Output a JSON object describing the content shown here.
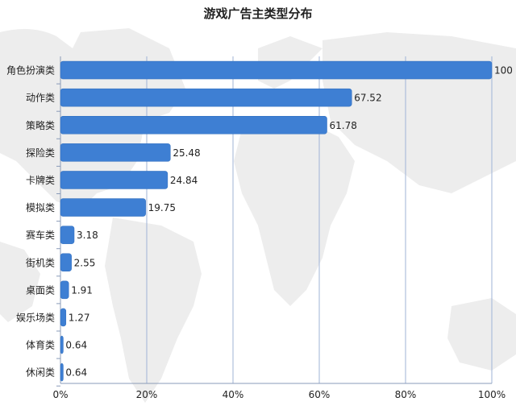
{
  "chart_data": {
    "type": "bar",
    "orientation": "horizontal",
    "title": "游戏广告主类型分布",
    "categories": [
      "角色扮演类",
      "动作类",
      "策略类",
      "探险类",
      "卡牌类",
      "模拟类",
      "赛车类",
      "街机类",
      "桌面类",
      "娱乐场类",
      "体育类",
      "休闲类"
    ],
    "values": [
      100,
      67.52,
      61.78,
      25.48,
      24.84,
      19.75,
      3.18,
      2.55,
      1.91,
      1.27,
      0.64,
      0.64
    ],
    "value_labels": [
      "100",
      "67.52",
      "61.78",
      "25.48",
      "24.84",
      "19.75",
      "3.18",
      "2.55",
      "1.91",
      "1.27",
      "0.64",
      "0.64"
    ],
    "x_ticks": [
      "0%",
      "20%",
      "40%",
      "60%",
      "80%",
      "100%"
    ],
    "xlim": [
      0,
      100
    ],
    "grid": true,
    "legend": false,
    "xlabel": "",
    "ylabel": ""
  },
  "colors": {
    "bar": "#3e7fd3",
    "bar_edge": "#2f6dbd",
    "grid": "#9fb3d6",
    "text": "#222222",
    "map": "#ececec"
  }
}
